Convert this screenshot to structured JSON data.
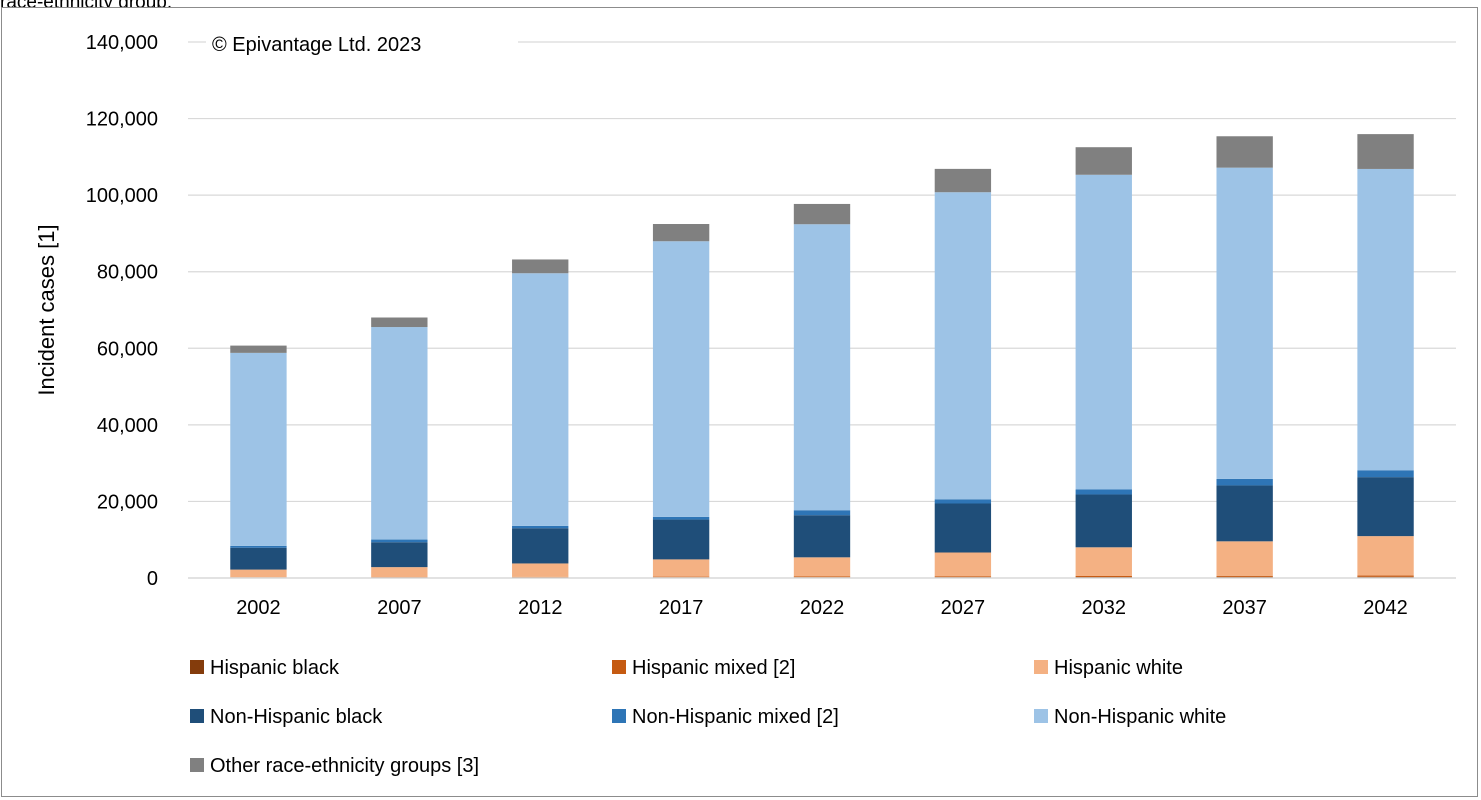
{
  "header": {
    "caption_fragment": "race-ethnicity group."
  },
  "chart_data": {
    "type": "bar",
    "stacked": true,
    "categories": [
      "2002",
      "2007",
      "2012",
      "2017",
      "2022",
      "2027",
      "2032",
      "2037",
      "2042"
    ],
    "ylabel": "Incident cases [1]",
    "ylim": [
      0,
      140000
    ],
    "y_ticks": [
      "0",
      "20,000",
      "40,000",
      "60,000",
      "80,000",
      "100,000",
      "120,000",
      "140,000"
    ],
    "gridlines": true,
    "legend_position": "bottom",
    "annotation": "© Epivantage Ltd. 2023",
    "series": [
      {
        "name": "Hispanic black",
        "color": "#843c0c",
        "values": [
          100,
          120,
          150,
          180,
          200,
          230,
          260,
          290,
          320
        ]
      },
      {
        "name": "Hispanic mixed [2]",
        "color": "#c55a11",
        "values": [
          100,
          120,
          150,
          180,
          200,
          230,
          260,
          290,
          320
        ]
      },
      {
        "name": "Hispanic white",
        "color": "#f4b183",
        "values": [
          2000,
          2600,
          3500,
          4500,
          5000,
          6200,
          7500,
          9000,
          10300
        ]
      },
      {
        "name": "Non-Hispanic black",
        "color": "#1f4e79",
        "values": [
          5700,
          6500,
          9200,
          10400,
          11000,
          12800,
          13800,
          14600,
          15400
        ]
      },
      {
        "name": "Non-Hispanic mixed [2]",
        "color": "#2e75b6",
        "values": [
          500,
          700,
          600,
          700,
          1300,
          1100,
          1300,
          1700,
          1800
        ]
      },
      {
        "name": "Non-Hispanic white",
        "color": "#9dc3e6",
        "values": [
          50400,
          55500,
          66000,
          72000,
          74700,
          80200,
          82200,
          81300,
          78700
        ]
      },
      {
        "name": "Other race-ethnicity groups [3]",
        "color": "#808080",
        "values": [
          1900,
          2500,
          3600,
          4500,
          5300,
          6100,
          7200,
          8200,
          9100
        ]
      }
    ]
  }
}
